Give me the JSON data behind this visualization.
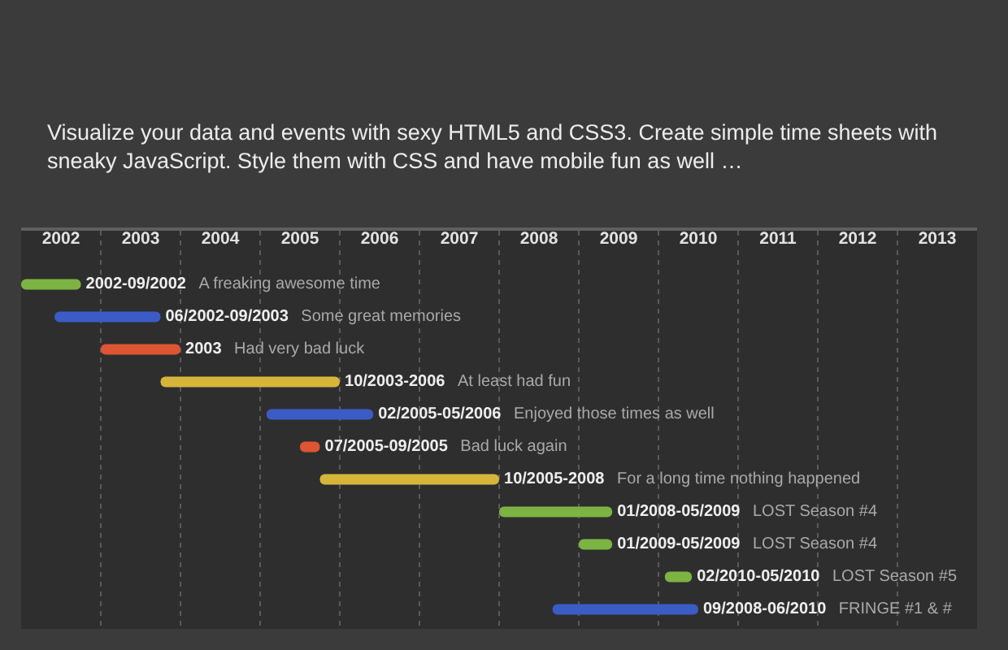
{
  "chart_data": {
    "type": "bar",
    "orientation": "horizontal",
    "title": "Visualize your data and events with sexy HTML5 and CSS3. Create simple time sheets with sneaky JavaScript. Style them with CSS and have mobile fun as well …",
    "categories": [
      "2002-09/2002 A freaking awesome time",
      "06/2002-09/2003 Some great memories",
      "2003 Had very bad luck",
      "10/2003-2006 At least had fun",
      "02/2005-05/2006 Enjoyed those times as well",
      "07/2005-09/2005 Bad luck again",
      "10/2005-2008 For a long time nothing happened",
      "01/2008-05/2009 LOST Season #4",
      "01/2009-05/2009 LOST Season #4",
      "02/2010-05/2010 LOST Season #5",
      "09/2008-06/2010 FRINGE #1 & #"
    ],
    "base": [
      2002,
      2002.42,
      2003,
      2003.75,
      2005.08,
      2005.5,
      2005.75,
      2008,
      2009,
      2010.08,
      2008.67
    ],
    "values": [
      0.75,
      1.33,
      1,
      2.25,
      1.34,
      0.25,
      2.25,
      1.42,
      0.42,
      0.34,
      1.83
    ],
    "colors": [
      "#7cb342",
      "#3b5cc4",
      "#dd5533",
      "#d6b63a",
      "#3b5cc4",
      "#dd5533",
      "#d6b63a",
      "#7cb342",
      "#7cb342",
      "#7cb342",
      "#3b5cc4"
    ],
    "xlim": [
      2002,
      2014
    ],
    "xticks": [
      {
        "value": 2002,
        "label": null
      },
      {
        "value": 2002.5,
        "label": "2002"
      },
      {
        "value": 2003,
        "label": null
      },
      {
        "value": 2003.5,
        "label": "2003"
      },
      {
        "value": 2004,
        "label": null
      },
      {
        "value": 2004.5,
        "label": "2004"
      },
      {
        "value": 2005,
        "label": null
      },
      {
        "value": 2005.5,
        "label": "2005"
      },
      {
        "value": 2006,
        "label": null
      },
      {
        "value": 2006.5,
        "label": "2006"
      },
      {
        "value": 2007,
        "label": null
      },
      {
        "value": 2007.5,
        "label": "2007"
      },
      {
        "value": 2008,
        "label": null
      },
      {
        "value": 2008.5,
        "label": "2008"
      },
      {
        "value": 2009,
        "label": null
      },
      {
        "value": 2009.5,
        "label": "2009"
      },
      {
        "value": 2010,
        "label": null
      },
      {
        "value": 2010.5,
        "label": "2010"
      },
      {
        "value": 2011,
        "label": null
      },
      {
        "value": 2011.5,
        "label": "2011"
      },
      {
        "value": 2012,
        "label": null
      },
      {
        "value": 2012.5,
        "label": "2012"
      },
      {
        "value": 2013,
        "label": null
      },
      {
        "value": 2013.5,
        "label": "2013"
      }
    ],
    "grid": "x",
    "tick_labels": "x"
  }
}
